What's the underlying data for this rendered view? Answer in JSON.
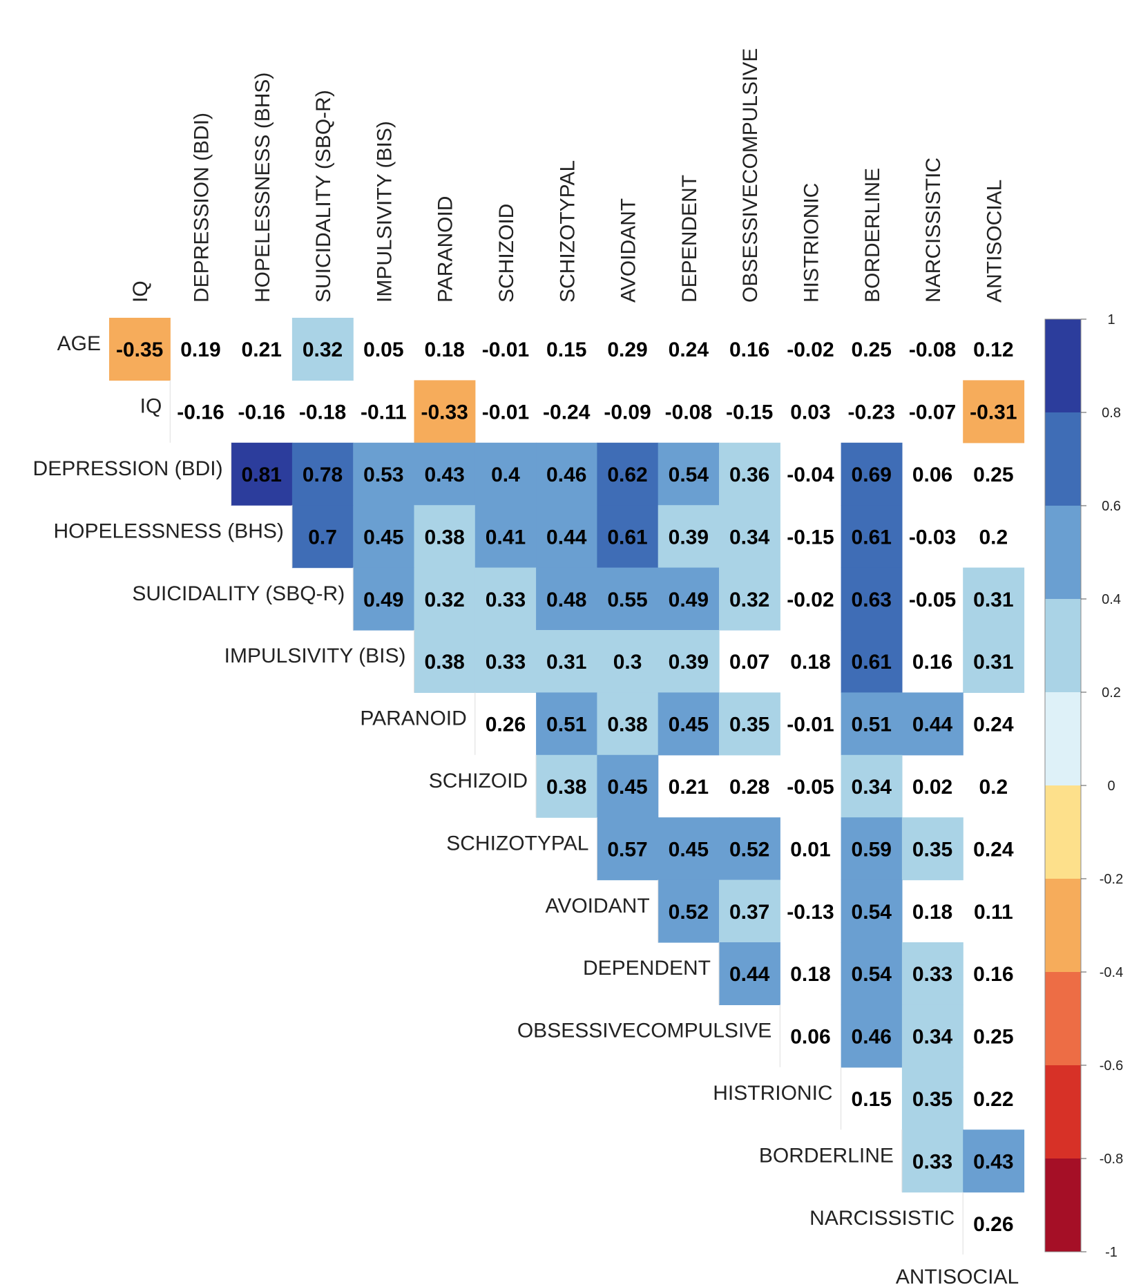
{
  "chart_data": {
    "type": "heatmap",
    "title": "",
    "columns": [
      "IQ",
      "DEPRESSION (BDI)",
      "HOPELESSNESS (BHS)",
      "SUICIDALITY (SBQ-R)",
      "IMPULSIVITY (BIS)",
      "PARANOID",
      "SCHIZOID",
      "SCHIZOTYPAL",
      "AVOIDANT",
      "DEPENDENT",
      "OBSESSIVECOMPULSIVE",
      "HISTRIONIC",
      "BORDERLINE",
      "NARCISSISTIC",
      "ANTISOCIAL"
    ],
    "rows": [
      "AGE",
      "IQ",
      "DEPRESSION (BDI)",
      "HOPELESSNESS (BHS)",
      "SUICIDALITY (SBQ-R)",
      "IMPULSIVITY (BIS)",
      "PARANOID",
      "SCHIZOID",
      "SCHIZOTYPAL",
      "AVOIDANT",
      "DEPENDENT",
      "OBSESSIVECOMPULSIVE",
      "HISTRIONIC",
      "BORDERLINE",
      "NARCISSISTIC"
    ],
    "bottom_label": "ANTISOCIAL",
    "values": [
      [
        -0.35,
        0.19,
        0.21,
        0.32,
        0.05,
        0.18,
        -0.01,
        0.15,
        0.29,
        0.24,
        0.16,
        -0.02,
        0.25,
        -0.08,
        0.12
      ],
      [
        null,
        -0.16,
        -0.16,
        -0.18,
        -0.11,
        -0.33,
        -0.01,
        -0.24,
        -0.09,
        -0.08,
        -0.15,
        0.03,
        -0.23,
        -0.07,
        -0.31
      ],
      [
        null,
        null,
        0.81,
        0.78,
        0.53,
        0.43,
        0.4,
        0.46,
        0.62,
        0.54,
        0.36,
        -0.04,
        0.69,
        0.06,
        0.25
      ],
      [
        null,
        null,
        null,
        0.7,
        0.45,
        0.38,
        0.41,
        0.44,
        0.61,
        0.39,
        0.34,
        -0.15,
        0.61,
        -0.03,
        0.2
      ],
      [
        null,
        null,
        null,
        null,
        0.49,
        0.32,
        0.33,
        0.48,
        0.55,
        0.49,
        0.32,
        -0.02,
        0.63,
        -0.05,
        0.31
      ],
      [
        null,
        null,
        null,
        null,
        null,
        0.38,
        0.33,
        0.31,
        0.3,
        0.39,
        0.07,
        0.18,
        0.61,
        0.16,
        0.31
      ],
      [
        null,
        null,
        null,
        null,
        null,
        null,
        0.26,
        0.51,
        0.38,
        0.45,
        0.35,
        -0.01,
        0.51,
        0.44,
        0.24
      ],
      [
        null,
        null,
        null,
        null,
        null,
        null,
        null,
        0.38,
        0.45,
        0.21,
        0.28,
        -0.05,
        0.34,
        0.02,
        0.2
      ],
      [
        null,
        null,
        null,
        null,
        null,
        null,
        null,
        null,
        0.57,
        0.45,
        0.52,
        0.01,
        0.59,
        0.35,
        0.24
      ],
      [
        null,
        null,
        null,
        null,
        null,
        null,
        null,
        null,
        null,
        0.52,
        0.37,
        -0.13,
        0.54,
        0.18,
        0.11
      ],
      [
        null,
        null,
        null,
        null,
        null,
        null,
        null,
        null,
        null,
        null,
        0.44,
        0.18,
        0.54,
        0.33,
        0.16
      ],
      [
        null,
        null,
        null,
        null,
        null,
        null,
        null,
        null,
        null,
        null,
        null,
        0.06,
        0.46,
        0.34,
        0.25
      ],
      [
        null,
        null,
        null,
        null,
        null,
        null,
        null,
        null,
        null,
        null,
        null,
        null,
        0.15,
        0.35,
        0.22
      ],
      [
        null,
        null,
        null,
        null,
        null,
        null,
        null,
        null,
        null,
        null,
        null,
        null,
        null,
        0.33,
        0.43
      ],
      [
        null,
        null,
        null,
        null,
        null,
        null,
        null,
        null,
        null,
        null,
        null,
        null,
        null,
        null,
        0.26
      ]
    ],
    "colored": [
      [
        true,
        false,
        false,
        true,
        false,
        false,
        false,
        false,
        false,
        false,
        false,
        false,
        false,
        false,
        false
      ],
      [
        false,
        false,
        false,
        false,
        false,
        true,
        false,
        false,
        false,
        false,
        false,
        false,
        false,
        false,
        true
      ],
      [
        false,
        false,
        true,
        true,
        true,
        true,
        true,
        true,
        true,
        true,
        true,
        false,
        true,
        false,
        false
      ],
      [
        false,
        false,
        false,
        true,
        true,
        true,
        true,
        true,
        true,
        true,
        true,
        false,
        true,
        false,
        false
      ],
      [
        false,
        false,
        false,
        false,
        true,
        true,
        true,
        true,
        true,
        true,
        true,
        false,
        true,
        false,
        true
      ],
      [
        false,
        false,
        false,
        false,
        false,
        true,
        true,
        true,
        true,
        true,
        false,
        false,
        true,
        false,
        true
      ],
      [
        false,
        false,
        false,
        false,
        false,
        false,
        false,
        true,
        true,
        true,
        true,
        false,
        true,
        true,
        false
      ],
      [
        false,
        false,
        false,
        false,
        false,
        false,
        false,
        true,
        true,
        false,
        false,
        false,
        true,
        false,
        false
      ],
      [
        false,
        false,
        false,
        false,
        false,
        false,
        false,
        false,
        true,
        true,
        true,
        false,
        true,
        true,
        false
      ],
      [
        false,
        false,
        false,
        false,
        false,
        false,
        false,
        false,
        false,
        true,
        true,
        false,
        true,
        false,
        false
      ],
      [
        false,
        false,
        false,
        false,
        false,
        false,
        false,
        false,
        false,
        false,
        true,
        false,
        true,
        true,
        false
      ],
      [
        false,
        false,
        false,
        false,
        false,
        false,
        false,
        false,
        false,
        false,
        false,
        false,
        true,
        true,
        false
      ],
      [
        false,
        false,
        false,
        false,
        false,
        false,
        false,
        false,
        false,
        false,
        false,
        false,
        false,
        true,
        false
      ],
      [
        false,
        false,
        false,
        false,
        false,
        false,
        false,
        false,
        false,
        false,
        false,
        false,
        false,
        true,
        true
      ],
      [
        false,
        false,
        false,
        false,
        false,
        false,
        false,
        false,
        false,
        false,
        false,
        false,
        false,
        false,
        false
      ]
    ],
    "colorbar": {
      "ticks": [
        1,
        0.8,
        0.6,
        0.4,
        0.2,
        0,
        -0.2,
        -0.4,
        -0.6,
        -0.8,
        -1
      ],
      "tick_labels": [
        "1",
        "0.8",
        "0.6",
        "0.4",
        "0.2",
        "0",
        "-0.2",
        "-0.4",
        "-0.6",
        "-0.8",
        "-1"
      ],
      "colors": {
        "0.8": "#2c3d9c",
        "0.6": "#3f6db6",
        "0.4": "#6a9fd1",
        "0.2": "#aad3e6",
        "0.0": "#def1f8",
        "-0.2": "#fde08b",
        "-0.4": "#f6ac5b",
        "-0.6": "#ed6d45",
        "-0.8": "#d73127",
        "-1.0": "#a50f26"
      },
      "color_order": [
        "#2c3d9c",
        "#3f6db6",
        "#6a9fd1",
        "#aad3e6",
        "#def1f8",
        "#fde08b",
        "#f6ac5b",
        "#ed6d45",
        "#d73127",
        "#a50f26"
      ]
    }
  }
}
